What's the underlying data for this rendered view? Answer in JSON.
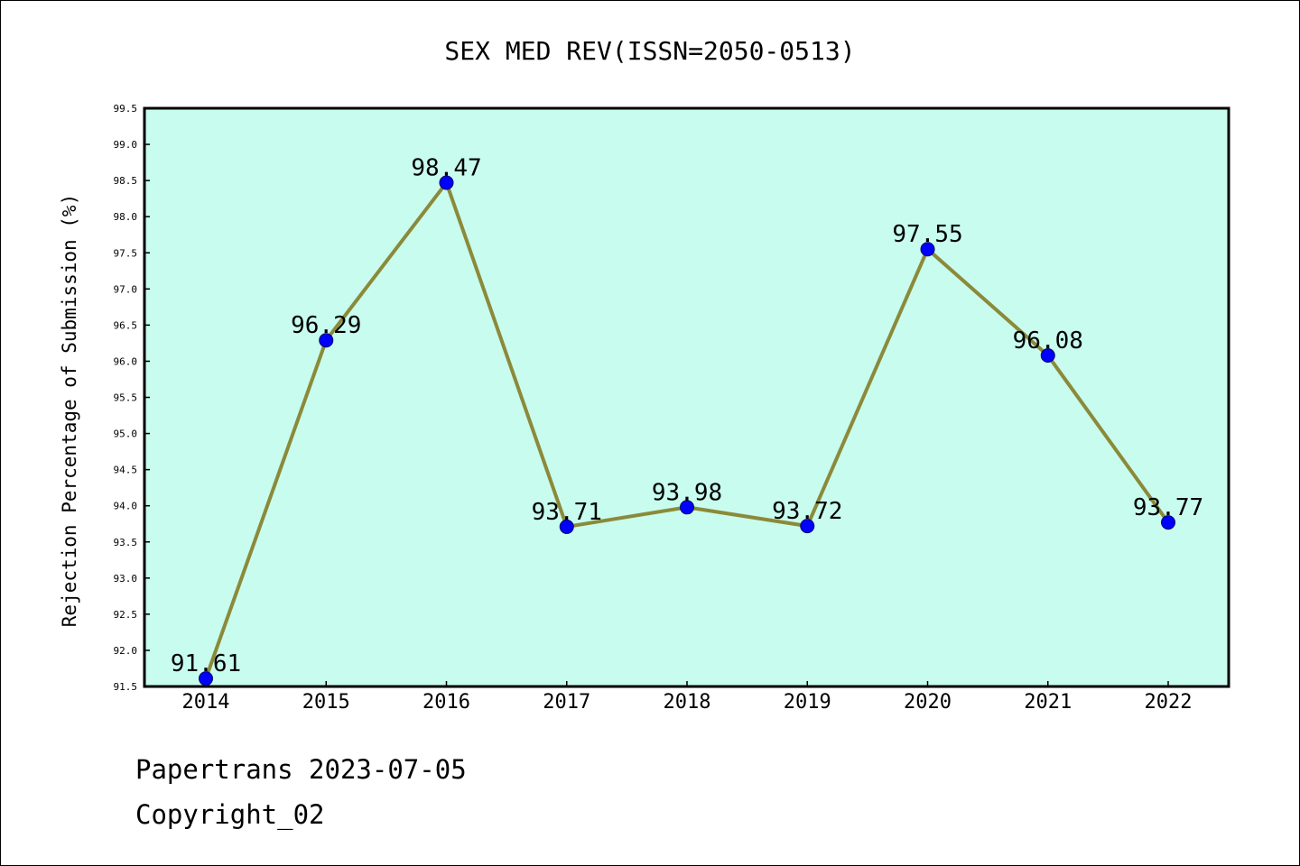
{
  "chart_data": {
    "type": "line",
    "title": "SEX MED REV(ISSN=2050-0513)",
    "xlabel": "",
    "ylabel": "Rejection Percentage of Submission (%)",
    "categories": [
      "2014",
      "2015",
      "2016",
      "2017",
      "2018",
      "2019",
      "2020",
      "2021",
      "2022"
    ],
    "values": [
      91.61,
      96.29,
      98.47,
      93.71,
      93.98,
      93.72,
      97.55,
      96.08,
      93.77
    ],
    "data_labels": [
      "91.61",
      "96.29",
      "98.47",
      "93.71",
      "93.98",
      "93.72",
      "97.55",
      "96.08",
      "93.77"
    ],
    "ylim": [
      91.5,
      99.5
    ],
    "yticks": [
      "91.5",
      "92.0",
      "92.5",
      "93.0",
      "93.5",
      "94.0",
      "94.5",
      "95.0",
      "95.5",
      "96.0",
      "96.5",
      "97.0",
      "97.5",
      "98.0",
      "98.5",
      "99.0",
      "99.5"
    ],
    "grid": false,
    "colors": {
      "plot_background": "#c8fcee",
      "line": "#8b8a3a",
      "marker": "#0000ff"
    }
  },
  "footer": {
    "line1": "Papertrans 2023-07-05",
    "line2": "Copyright_02"
  }
}
